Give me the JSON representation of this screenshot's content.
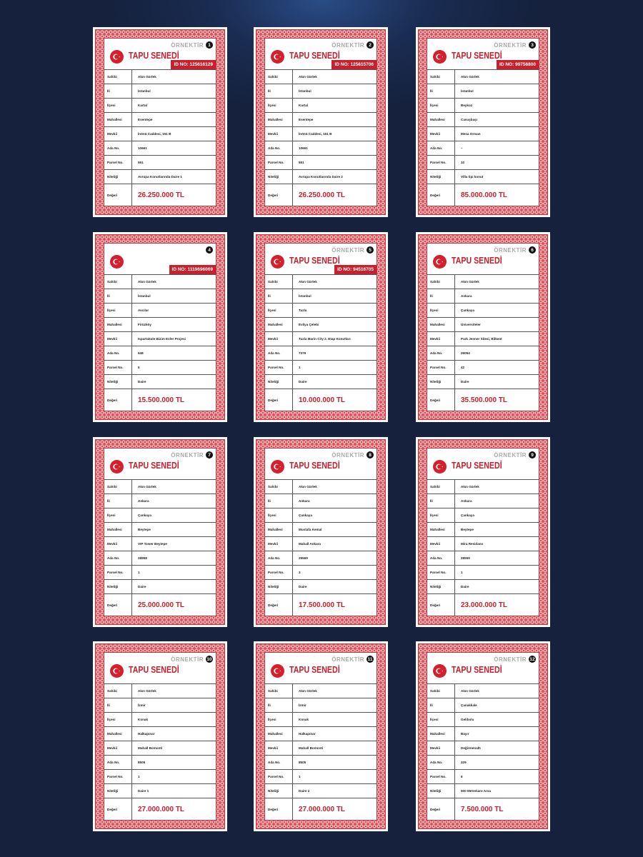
{
  "labels": [
    "Sahibi",
    "İli",
    "İlçesi",
    "Mahallesi",
    "Mevkii",
    "Ada No.",
    "Parsel No.",
    "Niteliği",
    "Değeri"
  ],
  "header": {
    "title": "TAPU SENEDİ",
    "watermark": "ÖRNEKTİR",
    "flag_icon": "turkish-flag-icon",
    "accent": "#c8202c"
  },
  "cards": [
    {
      "num": "1",
      "ornek": true,
      "title": true,
      "id": "ID NO: 125616129",
      "values": [
        "Akın Gürlek",
        "İstanbul",
        "Kartal",
        "Esentepe",
        "İnönü Caddesi, 151 B",
        "10661",
        "551",
        "Avrupa Konutlarında Daire 1",
        "26.250.000 TL"
      ]
    },
    {
      "num": "2",
      "ornek": true,
      "title": true,
      "id": "ID NO: 125615706",
      "values": [
        "Akın Gürlek",
        "İstanbul",
        "Kartal",
        "Esentepe",
        "İnönü Caddesi, 151 B",
        "10661",
        "551",
        "Avrupa Konutlarında Daire 2",
        "26.250.000 TL"
      ]
    },
    {
      "num": "3",
      "ornek": true,
      "title": true,
      "id": "ID NO: 99756800",
      "values": [
        "Akın Gürlek",
        "İstanbul",
        "Beykoz",
        "Cavuşbaşı",
        "Mesa Orman",
        "–",
        "10",
        "Villa tipi konut",
        "85.000.000 TL"
      ]
    },
    {
      "num": "4",
      "ornek": false,
      "title": false,
      "id": "ID NO: 1119696069",
      "values": [
        "Akın Gürlek",
        "İstanbul",
        "Avcılar",
        "Firüzköy",
        "Ispartakule Bizim Evler Projesi",
        "648",
        "5",
        "Daire",
        "15.500.000 TL"
      ]
    },
    {
      "num": "5",
      "ornek": true,
      "title": true,
      "id": "ID NO: 94516705",
      "values": [
        "Akın Gürlek",
        "İstanbul",
        "Tuzla",
        "Evliya Çelebi",
        "Tuzla Marin City 2. Etap Konutları",
        "7379",
        "1",
        "Daire",
        "10.000.000 TL"
      ]
    },
    {
      "num": "6",
      "ornek": true,
      "title": true,
      "id": null,
      "values": [
        "Akın Gürlek",
        "Ankara",
        "Çankaya",
        "Üniversiteler",
        "Park Jenner Sitesi, Bilkent",
        "26054",
        "42",
        "Daire",
        "35.500.000 TL"
      ]
    },
    {
      "num": "7",
      "ornek": true,
      "title": true,
      "id": null,
      "values": [
        "Akın Gürlek",
        "Ankara",
        "Çankaya",
        "Beytepe",
        "VIP Tower Beytepe",
        "28958",
        "1",
        "Daire",
        "25.000.000 TL"
      ]
    },
    {
      "num": "8",
      "ornek": true,
      "title": true,
      "id": null,
      "values": [
        "Akın Gürlek",
        "Ankara",
        "Çankaya",
        "Mustafa Kemal",
        "Mahall Ankara",
        "29569",
        "3",
        "Daire",
        "17.500.000 TL"
      ]
    },
    {
      "num": "9",
      "ornek": true,
      "title": true,
      "id": null,
      "values": [
        "Akın Gürlek",
        "Ankara",
        "Çankaya",
        "Beytepe",
        "Mira Residans",
        "28559",
        "1",
        "Daire",
        "23.000.000 TL"
      ]
    },
    {
      "num": "10",
      "ornek": true,
      "title": true,
      "id": null,
      "values": [
        "Akın Gürlek",
        "İzmir",
        "Konak",
        "Halkapınar",
        "Mahall Bomonti",
        "8505",
        "1",
        "Daire 1",
        "27.000.000 TL"
      ]
    },
    {
      "num": "11",
      "ornek": true,
      "title": true,
      "id": null,
      "values": [
        "Akın Gürlek",
        "İzmir",
        "Konak",
        "Halkapınar",
        "Mahall Bomonti",
        "8505",
        "1",
        "Daire 2",
        "27.000.000 TL"
      ]
    },
    {
      "num": "12",
      "ornek": true,
      "title": true,
      "id": null,
      "values": [
        "Akın Gürlek",
        "Çanakkale",
        "Gelibolu",
        "Bayır",
        "Değirmenaltı",
        "329",
        "6",
        "500 Metrekare Arsa",
        "7.500.000 TL"
      ]
    }
  ]
}
